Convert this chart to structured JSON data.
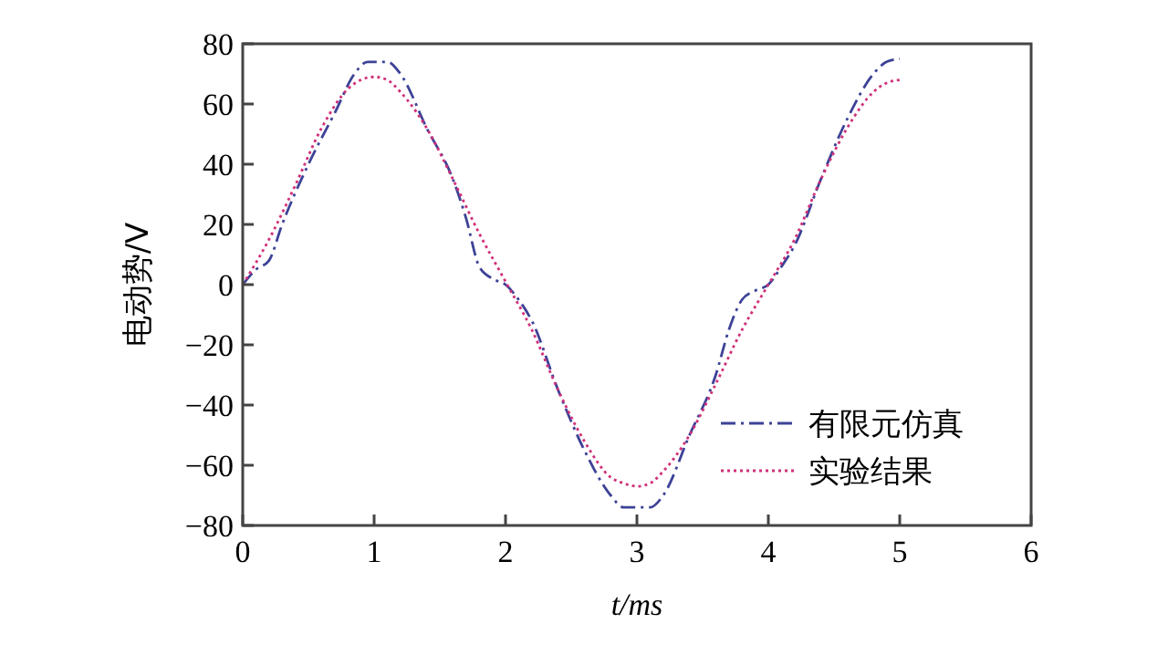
{
  "chart_data": {
    "type": "line",
    "xlabel": "t/ms",
    "ylabel": "电动势/V",
    "xlim": [
      0,
      6
    ],
    "xticks": [
      0,
      1,
      2,
      3,
      4,
      5,
      6
    ],
    "ylim": [
      -80,
      80
    ],
    "yticks": [
      {
        "value": -80,
        "label": "−80"
      },
      {
        "value": -60,
        "label": "−60"
      },
      {
        "value": -40,
        "label": "−40"
      },
      {
        "value": -20,
        "label": "−20"
      },
      0,
      20,
      40,
      60,
      80
    ],
    "legend": "bottom right",
    "grid": false,
    "series": [
      {
        "name": "有限元仿真",
        "color": "#3d4296",
        "line_style": "dashdot",
        "x": [
          0,
          0.1,
          0.2,
          0.3,
          0.5,
          0.7,
          0.85,
          0.95,
          1.0,
          1.1,
          1.2,
          1.4,
          1.6,
          1.7,
          1.8,
          1.9,
          2.0,
          2.1,
          2.2,
          2.4,
          2.6,
          2.8,
          2.9,
          3.0,
          3.1,
          3.2,
          3.4,
          3.6,
          3.7,
          3.8,
          3.9,
          4.0,
          4.1,
          4.2,
          4.4,
          4.6,
          4.8,
          4.9,
          5.0
        ],
        "values": [
          0,
          5,
          8,
          20,
          40,
          57,
          70,
          74,
          74,
          74,
          70,
          52,
          35,
          22,
          6,
          2,
          0,
          -5,
          -12,
          -35,
          -55,
          -70,
          -74,
          -74,
          -74,
          -70,
          -50,
          -30,
          -15,
          -5,
          -2,
          0,
          6,
          13,
          35,
          55,
          70,
          74,
          75
        ]
      },
      {
        "name": "实验结果",
        "color": "#d0307a",
        "line_style": "dotted",
        "x": [
          0,
          0.2,
          0.4,
          0.6,
          0.8,
          0.9,
          1.0,
          1.1,
          1.2,
          1.4,
          1.6,
          1.8,
          2.0,
          2.2,
          2.4,
          2.6,
          2.8,
          2.9,
          3.0,
          3.1,
          3.2,
          3.4,
          3.6,
          3.8,
          4.0,
          4.2,
          4.4,
          4.6,
          4.8,
          4.9,
          5.0
        ],
        "values": [
          0,
          15,
          33,
          52,
          65,
          68,
          69,
          68,
          64,
          52,
          35,
          17,
          1,
          -15,
          -35,
          -52,
          -64,
          -66,
          -67,
          -66,
          -62,
          -50,
          -33,
          -15,
          0,
          15,
          35,
          52,
          64,
          67,
          68
        ]
      }
    ]
  }
}
